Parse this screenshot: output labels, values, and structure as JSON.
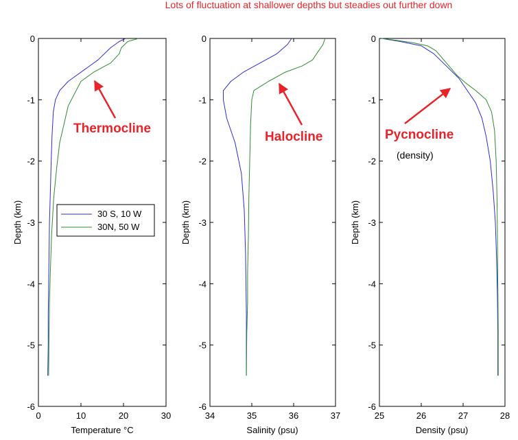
{
  "header_note": "Lots of fluctuation at shallower depths but steadies out further down",
  "colors": {
    "series_a": "#2b2bd6",
    "series_b": "#2e8b2e",
    "annotation": "#e8242a"
  },
  "chart_data": [
    {
      "type": "line",
      "xlabel": "Temperature °C",
      "ylabel": "Depth (km)",
      "xlim": [
        0,
        30
      ],
      "ylim": [
        -6,
        0
      ],
      "xticks": [
        0,
        10,
        20,
        30
      ],
      "yticks": [
        0,
        -1,
        -2,
        -3,
        -4,
        -5,
        -6
      ],
      "grid": false,
      "legend": {
        "placement": "middle-left",
        "entries": [
          "30 S, 10 W",
          "30N, 50 W"
        ]
      },
      "annotation": {
        "text": "Thermocline",
        "sub": ""
      },
      "series": [
        {
          "name": "30 S, 10 W",
          "color": "#2b2bd6",
          "points": [
            [
              20.5,
              0
            ],
            [
              19,
              -0.05
            ],
            [
              17,
              -0.15
            ],
            [
              14,
              -0.35
            ],
            [
              11,
              -0.5
            ],
            [
              7,
              -0.7
            ],
            [
              5,
              -0.85
            ],
            [
              4,
              -1.0
            ],
            [
              3.5,
              -1.2
            ],
            [
              3.2,
              -1.6
            ],
            [
              3,
              -2.0
            ],
            [
              2.8,
              -2.5
            ],
            [
              2.6,
              -3.0
            ],
            [
              2.5,
              -3.5
            ],
            [
              2.4,
              -4.0
            ],
            [
              2.3,
              -4.5
            ],
            [
              2.3,
              -5.0
            ],
            [
              2.2,
              -5.5
            ]
          ]
        },
        {
          "name": "30N, 50 W",
          "color": "#2e8b2e",
          "points": [
            [
              23.5,
              0
            ],
            [
              21,
              -0.05
            ],
            [
              19.5,
              -0.15
            ],
            [
              19,
              -0.25
            ],
            [
              17,
              -0.4
            ],
            [
              13,
              -0.55
            ],
            [
              10,
              -0.7
            ],
            [
              8.5,
              -0.9
            ],
            [
              7,
              -1.1
            ],
            [
              6,
              -1.4
            ],
            [
              5,
              -1.7
            ],
            [
              4.3,
              -2.1
            ],
            [
              3.6,
              -2.6
            ],
            [
              3.1,
              -3.2
            ],
            [
              2.8,
              -3.8
            ],
            [
              2.6,
              -4.3
            ],
            [
              2.5,
              -4.8
            ],
            [
              2.4,
              -5.5
            ]
          ]
        }
      ]
    },
    {
      "type": "line",
      "xlabel": "Salinity (psu)",
      "ylabel": "Depth (km)",
      "xlim": [
        34,
        37
      ],
      "ylim": [
        -6,
        0
      ],
      "xticks": [
        34,
        35,
        36,
        37
      ],
      "yticks": [
        0,
        -1,
        -2,
        -3,
        -4,
        -5,
        -6
      ],
      "grid": false,
      "annotation": {
        "text": "Halocline",
        "sub": ""
      },
      "series": [
        {
          "name": "30 S, 10 W",
          "color": "#2b2bd6",
          "points": [
            [
              35.95,
              0
            ],
            [
              35.85,
              -0.1
            ],
            [
              35.6,
              -0.25
            ],
            [
              35.2,
              -0.4
            ],
            [
              34.8,
              -0.55
            ],
            [
              34.5,
              -0.7
            ],
            [
              34.32,
              -0.85
            ],
            [
              34.32,
              -1.0
            ],
            [
              34.4,
              -1.3
            ],
            [
              34.6,
              -1.7
            ],
            [
              34.75,
              -2.2
            ],
            [
              34.82,
              -2.8
            ],
            [
              34.85,
              -3.5
            ],
            [
              34.86,
              -4.0
            ],
            [
              34.87,
              -4.5
            ],
            [
              34.87,
              -5.0
            ],
            [
              34.87,
              -5.5
            ]
          ]
        },
        {
          "name": "30N, 50 W",
          "color": "#2e8b2e",
          "points": [
            [
              36.75,
              0
            ],
            [
              36.7,
              -0.1
            ],
            [
              36.55,
              -0.25
            ],
            [
              36.45,
              -0.35
            ],
            [
              36.2,
              -0.45
            ],
            [
              35.8,
              -0.55
            ],
            [
              35.4,
              -0.7
            ],
            [
              35.05,
              -0.85
            ],
            [
              35.0,
              -1.0
            ],
            [
              34.97,
              -1.4
            ],
            [
              34.95,
              -2.0
            ],
            [
              34.93,
              -2.6
            ],
            [
              34.92,
              -3.2
            ],
            [
              34.9,
              -3.8
            ],
            [
              34.9,
              -4.3
            ],
            [
              34.88,
              -4.8
            ],
            [
              34.87,
              -5.5
            ]
          ]
        }
      ]
    },
    {
      "type": "line",
      "xlabel": "Density (psu)",
      "ylabel": "Depth (km)",
      "xlim": [
        25,
        28
      ],
      "ylim": [
        -6,
        0
      ],
      "xticks": [
        25,
        26,
        27,
        28
      ],
      "yticks": [
        0,
        -1,
        -2,
        -3,
        -4,
        -5,
        -6
      ],
      "grid": false,
      "annotation": {
        "text": "Pycnocline",
        "sub": "(density)"
      },
      "series": [
        {
          "name": "30 S, 10 W",
          "color": "#2b2bd6",
          "points": [
            [
              25.05,
              0
            ],
            [
              25.5,
              -0.05
            ],
            [
              26.0,
              -0.12
            ],
            [
              26.3,
              -0.25
            ],
            [
              26.6,
              -0.45
            ],
            [
              26.9,
              -0.65
            ],
            [
              27.1,
              -0.85
            ],
            [
              27.3,
              -1.05
            ],
            [
              27.45,
              -1.3
            ],
            [
              27.55,
              -1.6
            ],
            [
              27.65,
              -2.0
            ],
            [
              27.72,
              -2.5
            ],
            [
              27.77,
              -3.0
            ],
            [
              27.8,
              -3.6
            ],
            [
              27.82,
              -4.2
            ],
            [
              27.83,
              -4.8
            ],
            [
              27.83,
              -5.5
            ]
          ]
        },
        {
          "name": "30N, 50 W",
          "color": "#2e8b2e",
          "points": [
            [
              25.05,
              0
            ],
            [
              25.4,
              -0.03
            ],
            [
              25.8,
              -0.07
            ],
            [
              26.15,
              -0.12
            ],
            [
              26.35,
              -0.2
            ],
            [
              26.6,
              -0.4
            ],
            [
              26.85,
              -0.6
            ],
            [
              27.05,
              -0.72
            ],
            [
              27.3,
              -0.85
            ],
            [
              27.55,
              -1.0
            ],
            [
              27.68,
              -1.2
            ],
            [
              27.75,
              -1.5
            ],
            [
              27.79,
              -2.0
            ],
            [
              27.81,
              -2.6
            ],
            [
              27.82,
              -3.2
            ],
            [
              27.83,
              -4.0
            ],
            [
              27.84,
              -4.8
            ],
            [
              27.84,
              -5.5
            ]
          ]
        }
      ]
    }
  ]
}
